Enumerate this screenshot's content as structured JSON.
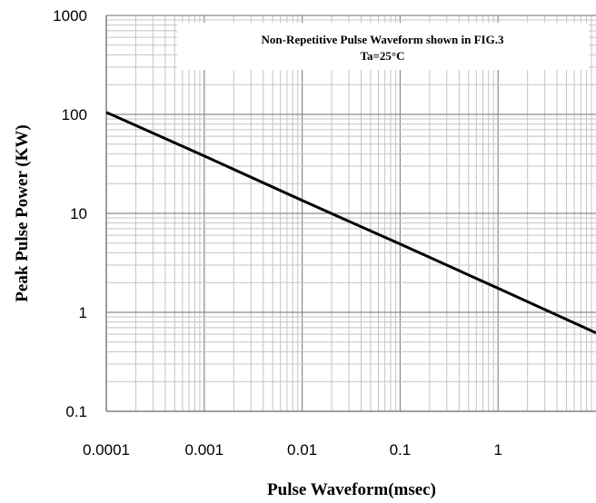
{
  "chart_data": {
    "type": "line",
    "title": "Non-Repetitive Pulse Waveform shown in FIG.3",
    "subtitle": "Ta=25°C",
    "xlabel": "Pulse Waveform(msec)",
    "ylabel": "Peak Pulse Power  (KW)",
    "x_scale": "log",
    "y_scale": "log",
    "xlim": [
      0.0001,
      10
    ],
    "ylim": [
      0.1,
      1000
    ],
    "x_ticks": [
      "0.0001",
      "0.001",
      "0.01",
      "0.1",
      "1"
    ],
    "y_ticks": [
      "0.1",
      "1",
      "10",
      "100",
      "1000"
    ],
    "grid": true,
    "series": [
      {
        "x": [
          0.0001,
          0.001,
          0.01,
          0.1,
          1,
          10
        ],
        "y": [
          105,
          38,
          13.5,
          4.9,
          1.75,
          0.62
        ]
      }
    ]
  }
}
